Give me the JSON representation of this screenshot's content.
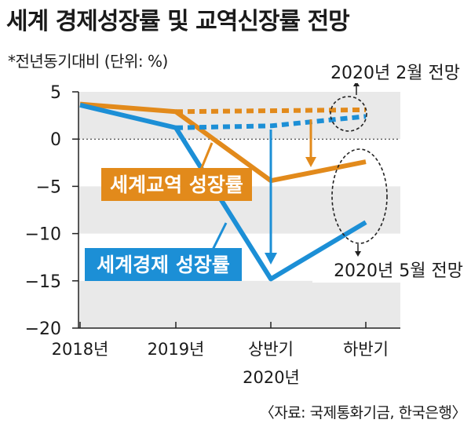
{
  "title": "세계 경제성장률 및 교역신장률 전망",
  "subtitle": "*전년동기대비 (단위: %)",
  "source": "〈자료: 국제통화기금, 한국은행〉",
  "colors": {
    "trade": "#e28a1b",
    "economy": "#1c8fd6",
    "band": "#e9e9e9",
    "axis": "#222222"
  },
  "annotations": {
    "february_forecast": "2020년 2월 전망",
    "may_forecast": "2020년 5월 전망"
  },
  "chart_data": {
    "type": "line",
    "categories": [
      "2018년",
      "2019년",
      "상반기",
      "하반기"
    ],
    "category_group": {
      "label": "2020년",
      "spans": [
        "상반기",
        "하반기"
      ]
    },
    "yticks": [
      5,
      0,
      -5,
      -10,
      -15,
      -20
    ],
    "ylim": [
      -20,
      5
    ],
    "series": [
      {
        "name": "세계교역 성장률",
        "forecast": "2020년 5월 전망",
        "style": "solid",
        "color": "#e28a1b",
        "values": [
          3.7,
          2.9,
          -4.4,
          -2.4
        ]
      },
      {
        "name": "세계교역 성장률",
        "forecast": "2020년 2월 전망",
        "style": "dashed",
        "color": "#e28a1b",
        "values": [
          null,
          2.9,
          3.0,
          3.1
        ]
      },
      {
        "name": "세계경제 성장률",
        "forecast": "2020년 5월 전망",
        "style": "solid",
        "color": "#1c8fd6",
        "values": [
          3.6,
          1.2,
          -14.8,
          -8.8
        ]
      },
      {
        "name": "세계경제 성장률",
        "forecast": "2020년 2월 전망",
        "style": "dashed",
        "color": "#1c8fd6",
        "values": [
          null,
          1.2,
          1.4,
          2.4
        ]
      }
    ]
  }
}
